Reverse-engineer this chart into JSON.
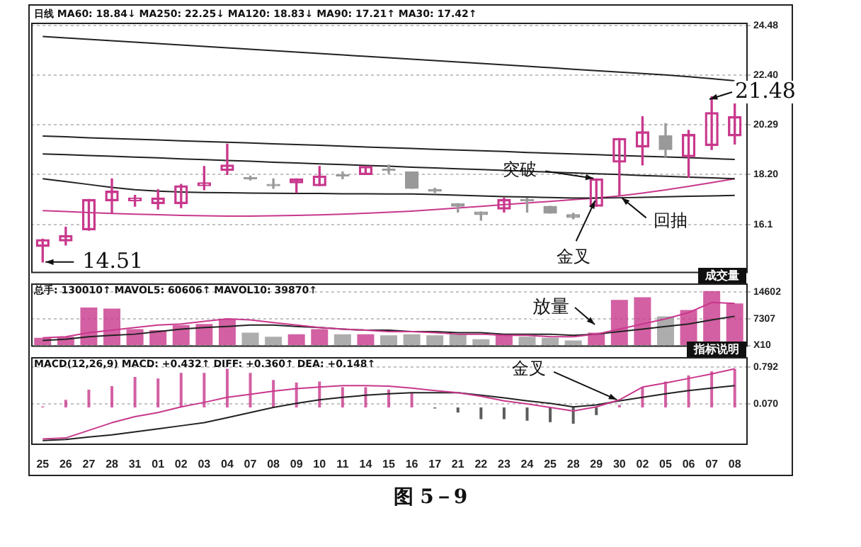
{
  "chart_data": [
    {
      "type": "candlestick",
      "title": "日线 MA60: 18.84↓ MA250: 22.25↓ MA120: 18.83↓ MA90: 17.21↑ MA30: 17.42↑",
      "categories": [
        "25",
        "26",
        "27",
        "28",
        "31",
        "01",
        "02",
        "03",
        "04",
        "07",
        "08",
        "09",
        "10",
        "11",
        "14",
        "15",
        "16",
        "17",
        "21",
        "22",
        "23",
        "24",
        "25",
        "28",
        "29",
        "30",
        "02",
        "05",
        "06",
        "07",
        "08"
      ],
      "ohlc": [
        [
          15.17,
          15.48,
          14.51,
          15.46
        ],
        [
          15.4,
          15.98,
          15.23,
          15.63
        ],
        [
          15.87,
          17.15,
          15.85,
          17.15
        ],
        [
          17.09,
          18.02,
          16.57,
          17.5
        ],
        [
          17.09,
          17.32,
          16.86,
          17.21
        ],
        [
          16.97,
          17.56,
          16.74,
          17.21
        ],
        [
          16.97,
          17.79,
          16.8,
          17.73
        ],
        [
          17.73,
          18.54,
          17.56,
          17.85
        ],
        [
          18.37,
          19.48,
          18.2,
          18.6
        ],
        [
          18.08,
          18.14,
          17.97,
          18.02
        ],
        [
          17.79,
          18.02,
          17.62,
          17.73
        ],
        [
          17.85,
          18.02,
          17.44,
          18.02
        ],
        [
          17.73,
          18.54,
          17.73,
          18.14
        ],
        [
          18.17,
          18.31,
          18.02,
          18.14
        ],
        [
          18.2,
          18.54,
          18.2,
          18.54
        ],
        [
          18.4,
          18.6,
          18.25,
          18.37
        ],
        [
          18.31,
          18.31,
          17.62,
          17.62
        ],
        [
          17.56,
          17.62,
          17.44,
          17.5
        ],
        [
          16.97,
          16.97,
          16.62,
          16.86
        ],
        [
          16.62,
          16.62,
          16.27,
          16.51
        ],
        [
          16.74,
          17.21,
          16.62,
          17.15
        ],
        [
          17.15,
          17.21,
          16.62,
          17.09
        ],
        [
          16.86,
          16.86,
          16.57,
          16.57
        ],
        [
          16.51,
          16.57,
          16.33,
          16.39
        ],
        [
          16.86,
          18.02,
          16.86,
          18.02
        ],
        [
          18.72,
          19.72,
          17.3,
          19.72
        ],
        [
          19.36,
          20.64,
          18.6,
          20.0
        ],
        [
          19.83,
          20.35,
          18.95,
          19.25
        ],
        [
          18.95,
          20.06,
          18.08,
          19.89
        ],
        [
          19.42,
          21.48,
          19.25,
          20.81
        ],
        [
          19.83,
          21.4,
          19.48,
          20.64
        ]
      ],
      "colors": [
        "#c8388c",
        "#c8388c",
        "#c8388c",
        "#c8388c",
        "#c8388c",
        "#c8388c",
        "#c8388c",
        "#c8388c",
        "#c8388c",
        "#999999",
        "#999999",
        "#c8388c",
        "#c8388c",
        "#999999",
        "#c8388c",
        "#999999",
        "#999999",
        "#999999",
        "#999999",
        "#999999",
        "#c8388c",
        "#999999",
        "#999999",
        "#999999",
        "#c8388c",
        "#c8388c",
        "#c8388c",
        "#999999",
        "#c8388c",
        "#c8388c",
        "#c8388c"
      ],
      "series": [
        {
          "type": "line",
          "color": "#222222",
          "values": [
            24.02,
            23.96,
            23.9,
            23.84,
            23.78,
            23.72,
            23.66,
            23.6,
            23.54,
            23.48,
            23.42,
            23.36,
            23.3,
            23.24,
            23.18,
            23.12,
            23.06,
            23.0,
            22.94,
            22.88,
            22.82,
            22.76,
            22.7,
            22.64,
            22.58,
            22.52,
            22.46,
            22.4,
            22.32,
            22.24,
            22.15
          ]
        },
        {
          "type": "line",
          "color": "#222222",
          "values": [
            19.82,
            19.79,
            19.75,
            19.72,
            19.69,
            19.66,
            19.62,
            19.59,
            19.56,
            19.53,
            19.49,
            19.46,
            19.43,
            19.4,
            19.36,
            19.33,
            19.3,
            19.26,
            19.23,
            19.2,
            19.17,
            19.13,
            19.1,
            19.07,
            19.04,
            19.0,
            18.97,
            18.94,
            18.91,
            18.87,
            18.84
          ]
        },
        {
          "type": "line",
          "color": "#222222",
          "values": [
            19.07,
            19.04,
            19.0,
            18.97,
            18.93,
            18.9,
            18.86,
            18.83,
            18.79,
            18.76,
            18.72,
            18.69,
            18.65,
            18.62,
            18.58,
            18.55,
            18.51,
            18.48,
            18.44,
            18.41,
            18.37,
            18.34,
            18.3,
            18.27,
            18.23,
            18.2,
            18.16,
            18.13,
            18.09,
            18.06,
            18.02
          ]
        },
        {
          "type": "line",
          "color": "#222222",
          "values": [
            18.02,
            17.9,
            17.78,
            17.66,
            17.56,
            17.5,
            17.46,
            17.44,
            17.43,
            17.42,
            17.41,
            17.4,
            17.4,
            17.39,
            17.39,
            17.38,
            17.38,
            17.36,
            17.33,
            17.3,
            17.27,
            17.25,
            17.23,
            17.21,
            17.21,
            17.22,
            17.24,
            17.26,
            17.28,
            17.3,
            17.32
          ]
        },
        {
          "type": "line",
          "color": "#c8388c",
          "values": [
            16.68,
            16.64,
            16.6,
            16.56,
            16.53,
            16.51,
            16.48,
            16.46,
            16.45,
            16.45,
            16.46,
            16.48,
            16.5,
            16.53,
            16.57,
            16.61,
            16.66,
            16.72,
            16.79,
            16.86,
            16.93,
            17.0,
            17.07,
            17.14,
            17.21,
            17.3,
            17.42,
            17.55,
            17.7,
            17.86,
            18.02
          ]
        }
      ],
      "ylim": [
        14.1,
        24.6
      ],
      "yticks": [
        16.1,
        {
          "value": 18.2,
          "label": "18.20"
        },
        20.29,
        {
          "value": 22.4,
          "label": "22.40"
        },
        24.48
      ],
      "grid": "y",
      "legend": false,
      "tick_labels": "y",
      "annotations": [
        {
          "text": "14.51",
          "x": "25",
          "y": 14.51
        },
        "21.48",
        {
          "text": "突破",
          "x": "29",
          "y": 18.02
        },
        {
          "text": "回抽",
          "x": "30",
          "y": 17.3
        },
        {
          "text": "金叉",
          "x": "29",
          "y": 17.21
        }
      ]
    },
    {
      "type": "bar",
      "title": "总手: 130010↑ MAVOL5: 60606↑ MAVOL10: 39870↑",
      "categories": [
        "25",
        "26",
        "27",
        "28",
        "31",
        "01",
        "02",
        "03",
        "04",
        "07",
        "08",
        "09",
        "10",
        "11",
        "14",
        "15",
        "16",
        "17",
        "21",
        "22",
        "23",
        "24",
        "25",
        "28",
        "29",
        "30",
        "02",
        "05",
        "06",
        "07",
        "08"
      ],
      "series": [
        {
          "type": "bar",
          "colors": [
            "#c8388c",
            "#c8388c",
            "#c8388c",
            "#c8388c",
            "#c8388c",
            "#c8388c",
            "#c8388c",
            "#c8388c",
            "#c8388c",
            "#999999",
            "#999999",
            "#c8388c",
            "#c8388c",
            "#999999",
            "#c8388c",
            "#999999",
            "#999999",
            "#999999",
            "#999999",
            "#999999",
            "#c8388c",
            "#999999",
            "#999999",
            "#999999",
            "#c8388c",
            "#c8388c",
            "#c8388c",
            "#999999",
            "#c8388c",
            "#c8388c",
            "#c8388c"
          ],
          "values": [
            2100,
            2400,
            10400,
            10100,
            4500,
            4200,
            5600,
            5900,
            7300,
            3500,
            2400,
            3100,
            4500,
            3100,
            3100,
            2800,
            3100,
            2800,
            3100,
            1700,
            3100,
            2400,
            2100,
            1400,
            3500,
            12500,
            13200,
            8000,
            9700,
            14900,
            11500
          ]
        },
        {
          "type": "line",
          "color": "#c8388c",
          "values": [
            2100,
            2400,
            3500,
            4200,
            4900,
            5600,
            5900,
            6600,
            7300,
            7000,
            6300,
            5600,
            4900,
            4500,
            4200,
            3800,
            3800,
            3500,
            3100,
            3100,
            2800,
            2800,
            2400,
            2400,
            3100,
            4500,
            5900,
            7300,
            9000,
            11800,
            11500
          ]
        },
        {
          "type": "line",
          "color": "#222222",
          "values": [
            1400,
            1700,
            2400,
            2800,
            3100,
            3800,
            4500,
            4900,
            5200,
            5600,
            5600,
            5200,
            4900,
            4500,
            4200,
            4200,
            3800,
            3800,
            3500,
            3500,
            3100,
            3100,
            3100,
            2800,
            3100,
            3800,
            4500,
            5200,
            5900,
            7000,
            8000
          ]
        }
      ],
      "ylim": [
        0,
        17000
      ],
      "yticks": [
        {
          "value": 0,
          "label": "X10"
        },
        7307,
        14602
      ],
      "grid": "y",
      "legend": false,
      "tick_labels": "y",
      "annotations": [
        "成交量",
        "放量"
      ]
    },
    {
      "type": "bar",
      "title": "MACD(12,26,9) MACD: +0.432↑ DIFF: +0.360↑ DEA: +0.148↑",
      "categories": [
        "25",
        "26",
        "27",
        "28",
        "31",
        "01",
        "02",
        "03",
        "04",
        "07",
        "08",
        "09",
        "10",
        "11",
        "14",
        "15",
        "16",
        "17",
        "21",
        "22",
        "23",
        "24",
        "25",
        "28",
        "29",
        "30",
        "02",
        "05",
        "06",
        "07",
        "08"
      ],
      "series": [
        {
          "type": "bar",
          "colors": [
            "#c8388c",
            "#c8388c",
            "#c8388c",
            "#c8388c",
            "#c8388c",
            "#c8388c",
            "#c8388c",
            "#c8388c",
            "#c8388c",
            "#c8388c",
            "#c8388c",
            "#c8388c",
            "#c8388c",
            "#c8388c",
            "#c8388c",
            "#c8388c",
            "#c8388c",
            "#333333",
            "#333333",
            "#333333",
            "#333333",
            "#333333",
            "#333333",
            "#333333",
            "#333333",
            "#c8388c",
            "#c8388c",
            "#c8388c",
            "#c8388c",
            "#c8388c",
            "#c8388c"
          ],
          "values": [
            0.02,
            0.15,
            0.35,
            0.42,
            0.6,
            0.57,
            0.68,
            0.68,
            0.76,
            0.68,
            0.54,
            0.49,
            0.51,
            0.4,
            0.4,
            0.35,
            0.29,
            -0.02,
            -0.1,
            -0.23,
            -0.23,
            -0.26,
            -0.29,
            -0.32,
            -0.15,
            0.05,
            0.4,
            0.51,
            0.63,
            0.71,
            0.76
          ]
        },
        {
          "type": "line",
          "color": "#c8388c",
          "values": [
            -0.62,
            -0.6,
            -0.45,
            -0.3,
            -0.18,
            -0.1,
            0.01,
            0.1,
            0.2,
            0.26,
            0.32,
            0.37,
            0.4,
            0.43,
            0.43,
            0.42,
            0.38,
            0.33,
            0.29,
            0.22,
            0.13,
            0.07,
            0.0,
            -0.07,
            0.01,
            0.15,
            0.4,
            0.48,
            0.57,
            0.66,
            0.76
          ]
        },
        {
          "type": "line",
          "color": "#222222",
          "values": [
            -0.65,
            -0.63,
            -0.58,
            -0.54,
            -0.48,
            -0.42,
            -0.36,
            -0.3,
            -0.2,
            -0.1,
            0.0,
            0.08,
            0.15,
            0.2,
            0.24,
            0.27,
            0.29,
            0.29,
            0.29,
            0.24,
            0.19,
            0.13,
            0.08,
            0.01,
            0.05,
            0.13,
            0.2,
            0.27,
            0.33,
            0.38,
            0.43
          ]
        }
      ],
      "ylim": [
        -0.71,
        0.99
      ],
      "yticks": [
        {
          "value": 0.07,
          "label": "0.070"
        },
        0.792
      ],
      "grid": "y",
      "legend": false,
      "annotations": [
        "指标说明",
        {
          "text": "金叉",
          "x": "30",
          "y": 0.13
        },
        "图 5－9"
      ]
    }
  ]
}
